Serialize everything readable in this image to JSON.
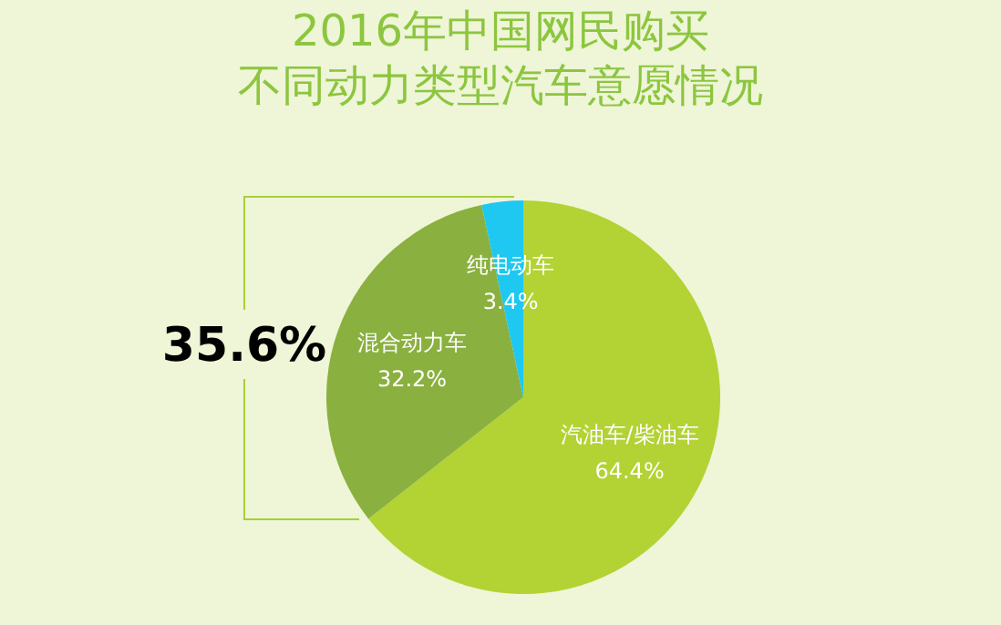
{
  "chart_data": {
    "type": "pie",
    "title": "2016年中国网民购买",
    "subtitle": "不同动力类型汽车意愿情况",
    "categories": [
      "汽油车/柴油车",
      "混合动力车",
      "纯电动车"
    ],
    "values": [
      64.4,
      32.2,
      3.4
    ],
    "value_labels": [
      "64.4%",
      "32.2%",
      "3.4%"
    ],
    "colors": [
      "#b3d234",
      "#8ab03f",
      "#1ec8f0"
    ],
    "annotations": [
      "35.6%"
    ]
  }
}
